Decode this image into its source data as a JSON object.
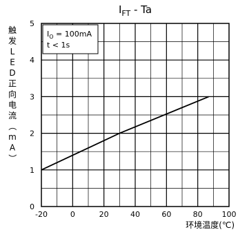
{
  "chart_data": {
    "type": "line",
    "title": {
      "main": "I",
      "sub": "FT",
      "rest": " - Ta"
    },
    "xlabel": "环境温度(℃)",
    "ylabel": "触发LED正向电流（mA）",
    "xlim": [
      -20,
      100
    ],
    "ylim": [
      0,
      5
    ],
    "xticks": [
      -20,
      0,
      20,
      40,
      60,
      80,
      100
    ],
    "yticks": [
      0,
      1,
      2,
      3,
      4,
      5
    ],
    "minor_x_step": 10,
    "minor_y_step": 0.5,
    "grid": true,
    "legend": {
      "line1": {
        "main": "I",
        "sub": "O",
        "rest": " = 100mA"
      },
      "line2": "t < 1s",
      "position": "top-left"
    },
    "series": [
      {
        "x": [
          -20,
          30,
          87
        ],
        "y": [
          1.0,
          2.0,
          3.0
        ],
        "color": "#000000"
      }
    ]
  }
}
